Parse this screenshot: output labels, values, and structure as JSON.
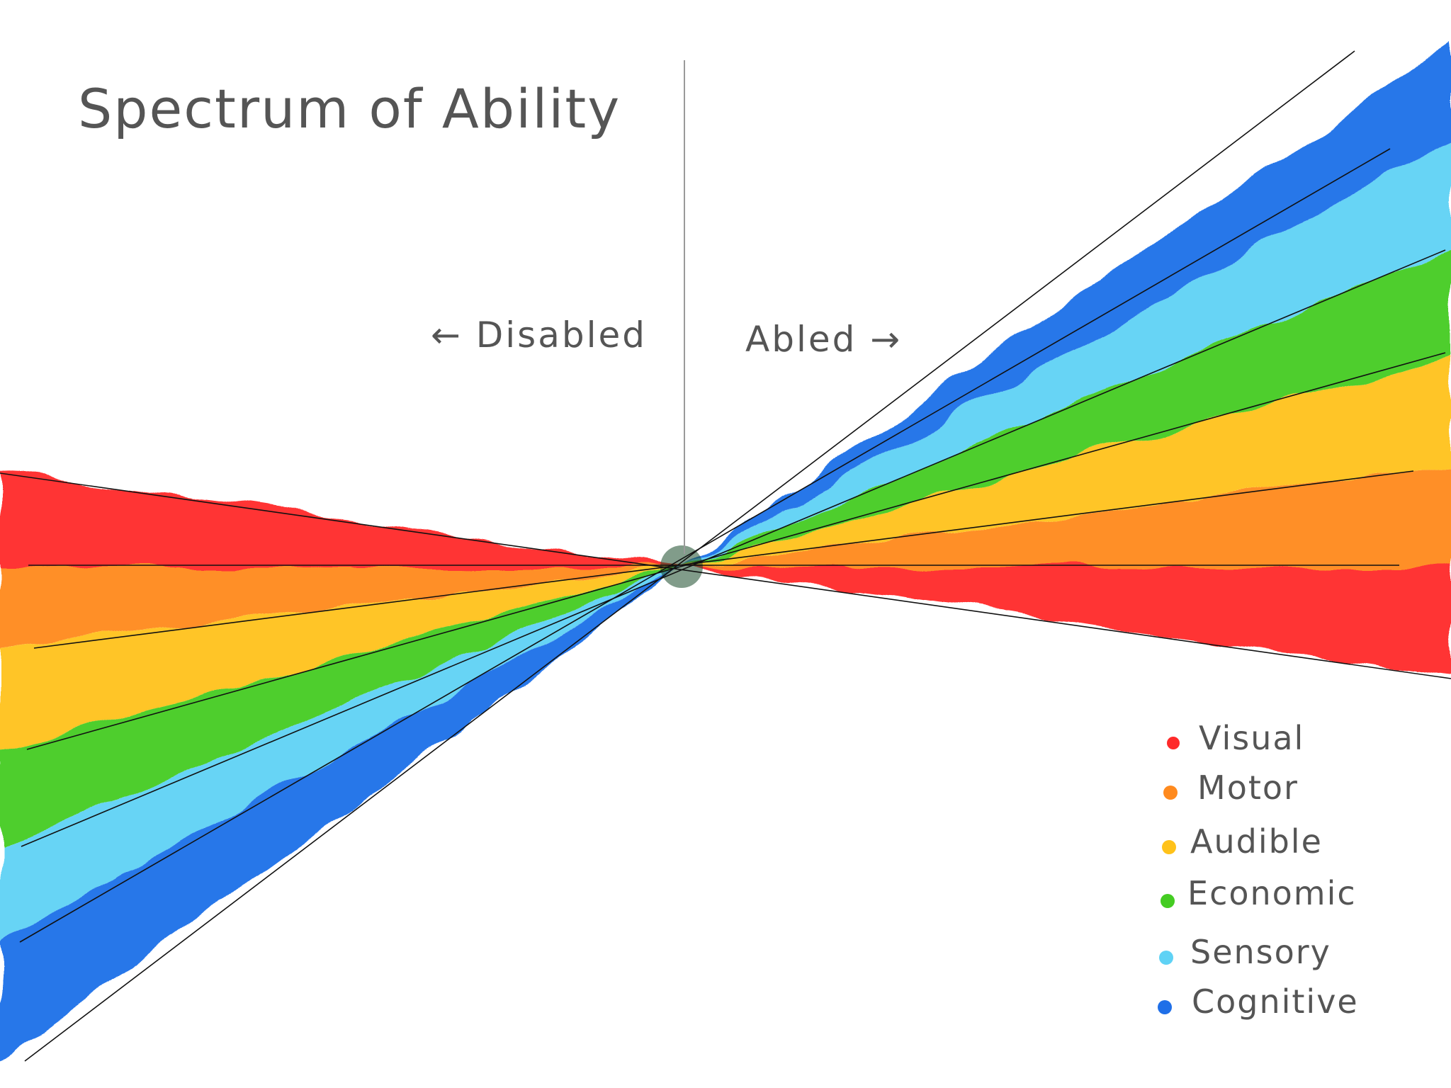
{
  "title": "Spectrum of Ability",
  "left_label": "← Disabled",
  "right_label": "Abled →",
  "categories": [
    {
      "name": "Visual",
      "color": "#ff2a2a"
    },
    {
      "name": "Motor",
      "color": "#ff8a1e"
    },
    {
      "name": "Audible",
      "color": "#ffc21a"
    },
    {
      "name": "Economic",
      "color": "#44cc22"
    },
    {
      "name": "Sensory",
      "color": "#5fd2f5"
    },
    {
      "name": "Cognitive",
      "color": "#1f6fe8"
    }
  ]
}
